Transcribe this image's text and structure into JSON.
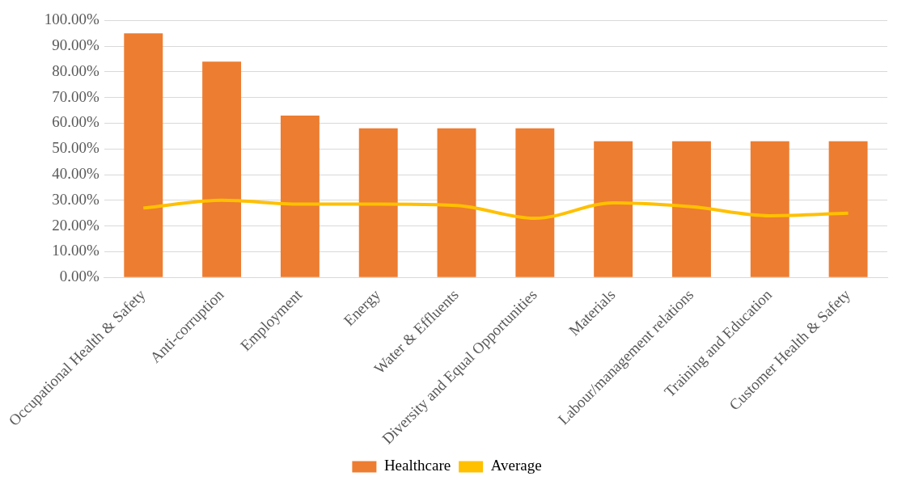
{
  "chart_data": {
    "type": "bar",
    "categories": [
      "Occupational Health & Safety",
      "Anti-corruption",
      "Employment",
      "Energy",
      "Water & Effluents",
      "Diversity and Equal Opportunities",
      "Materials",
      "Labour/management relations",
      "Training and Education",
      "Customer Health & Safety"
    ],
    "series": [
      {
        "name": "Healthcare",
        "color": "#ed7d31",
        "values": [
          95,
          84,
          63,
          58,
          58,
          58,
          53,
          53,
          53,
          53
        ]
      },
      {
        "name": "Average",
        "type": "line",
        "color": "#ffc000",
        "values": [
          27,
          30,
          28.5,
          28.5,
          28,
          23,
          29,
          27.5,
          24,
          25
        ]
      }
    ],
    "ylim": [
      0,
      100
    ],
    "yticks": [
      {
        "value": 0,
        "label": "0.00%"
      },
      {
        "value": 10,
        "label": "10.00%"
      },
      {
        "value": 20,
        "label": "20.00%"
      },
      {
        "value": 30,
        "label": "30.00%"
      },
      {
        "value": 40,
        "label": "40.00%"
      },
      {
        "value": 50,
        "label": "50.00%"
      },
      {
        "value": 60,
        "label": "60.00%"
      },
      {
        "value": 70,
        "label": "70.00%"
      },
      {
        "value": 80,
        "label": "80.00%"
      },
      {
        "value": 90,
        "label": "90.00%"
      },
      {
        "value": 100,
        "label": "100.00%"
      }
    ],
    "grid": "y",
    "legend": "bottom",
    "marker": "none"
  }
}
